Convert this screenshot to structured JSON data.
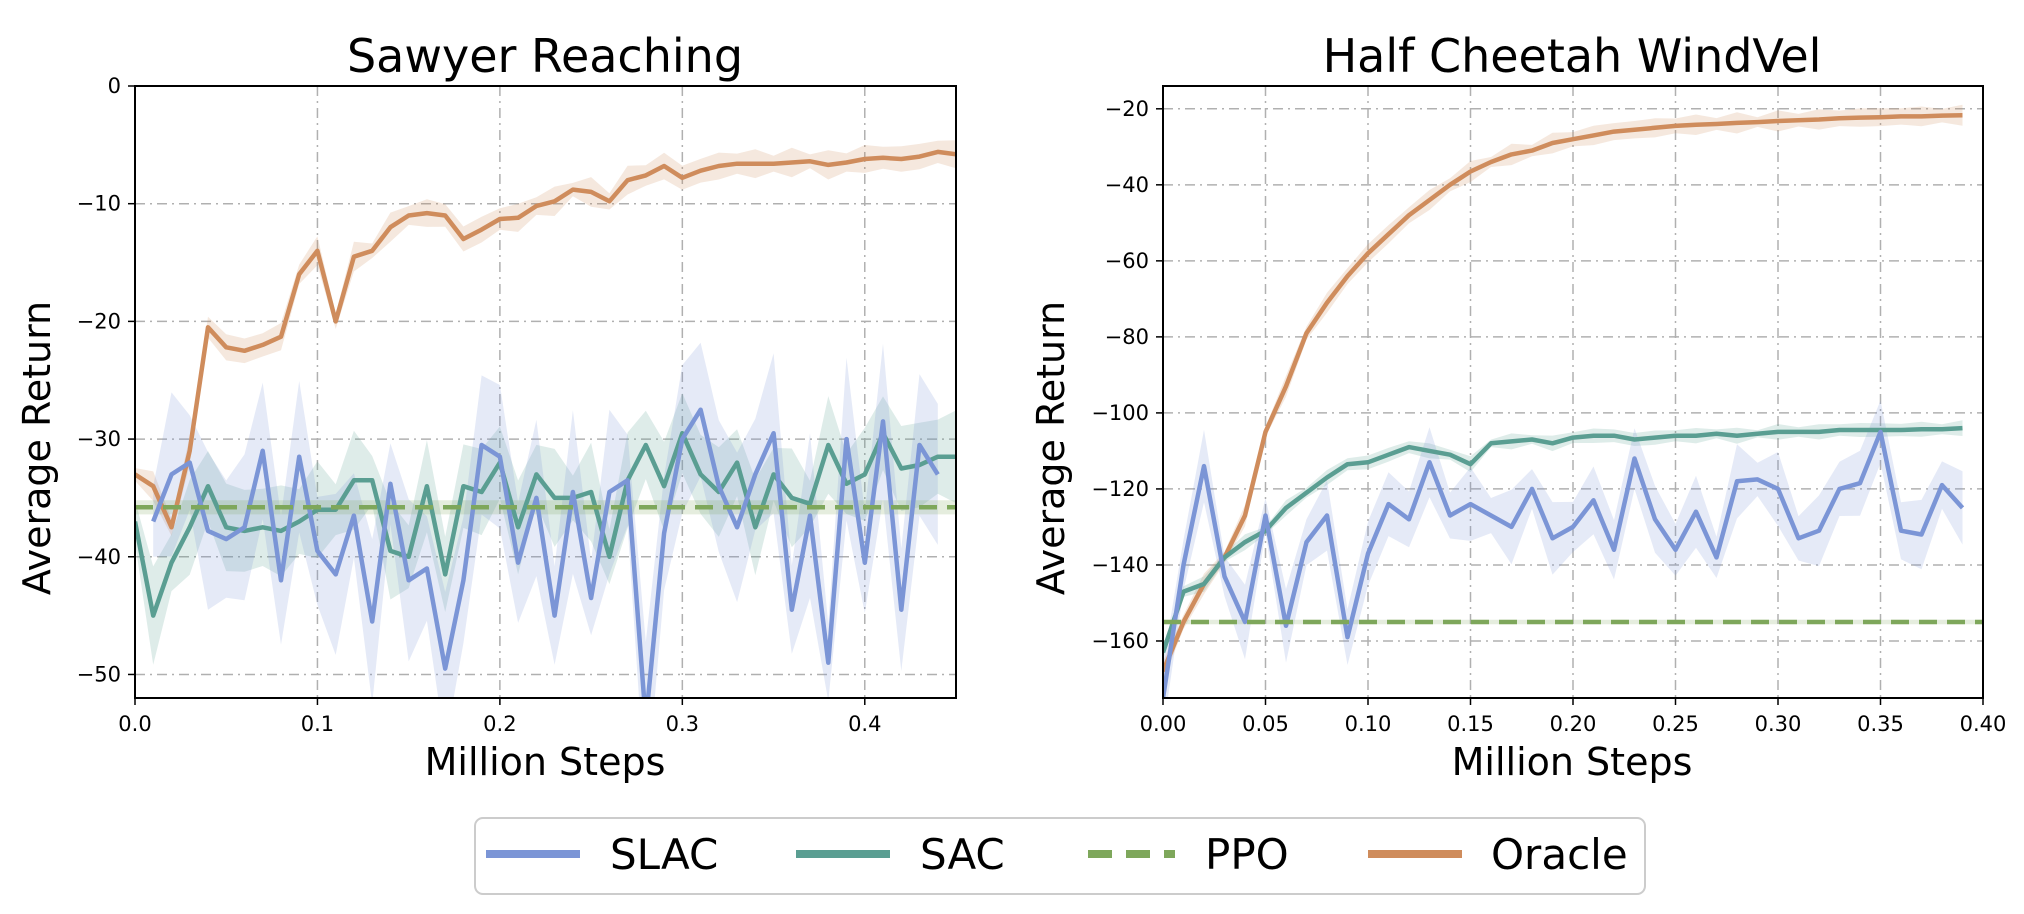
{
  "colors": {
    "SLAC": "#7b95d6",
    "SAC": "#5a9e92",
    "PPO": "#7ea75b",
    "Oracle": "#cf8c5c"
  },
  "legend": {
    "entries": [
      {
        "name": "SLAC",
        "style": "solid"
      },
      {
        "name": "SAC",
        "style": "solid"
      },
      {
        "name": "PPO",
        "style": "dashed"
      },
      {
        "name": "Oracle",
        "style": "solid"
      }
    ]
  },
  "chart_data": [
    {
      "type": "line",
      "title": "Sawyer Reaching",
      "xlabel": "Million Steps",
      "ylabel": "Average Return",
      "xlim": [
        0,
        0.45
      ],
      "ylim": [
        -52,
        0
      ],
      "xticks": [
        0.0,
        0.1,
        0.2,
        0.3,
        0.4
      ],
      "xtick_labels": [
        "0.0",
        "0.1",
        "0.2",
        "0.3",
        "0.4"
      ],
      "yticks": [
        0,
        -10,
        -20,
        -30,
        -40,
        -50
      ],
      "ytick_labels": [
        "0",
        "−10",
        "−20",
        "−30",
        "−40",
        "−50"
      ],
      "grid": true,
      "series": [
        {
          "name": "Oracle",
          "x": [
            0.0,
            0.01,
            0.02,
            0.03,
            0.04,
            0.05,
            0.06,
            0.07,
            0.08,
            0.09,
            0.1,
            0.11,
            0.12,
            0.13,
            0.14,
            0.15,
            0.16,
            0.17,
            0.18,
            0.19,
            0.2,
            0.21,
            0.22,
            0.23,
            0.24,
            0.25,
            0.26,
            0.27,
            0.28,
            0.29,
            0.3,
            0.31,
            0.32,
            0.33,
            0.34,
            0.35,
            0.36,
            0.37,
            0.38,
            0.39,
            0.4,
            0.41,
            0.42,
            0.43,
            0.44,
            0.45
          ],
          "y": [
            -33,
            -34,
            -37.5,
            -31,
            -20.5,
            -22.2,
            -22.5,
            -22,
            -21.3,
            -16,
            -14,
            -20,
            -14.5,
            -14,
            -12,
            -11,
            -10.8,
            -11,
            -13,
            -12.2,
            -11.3,
            -11.2,
            -10.2,
            -9.8,
            -8.8,
            -9,
            -9.8,
            -8,
            -7.6,
            -6.8,
            -7.8,
            -7.2,
            -6.8,
            -6.6,
            -6.6,
            -6.6,
            -6.5,
            -6.4,
            -6.7,
            -6.5,
            -6.2,
            -6.1,
            -6.2,
            -6.0,
            -5.6,
            -5.8
          ],
          "band": 0.9
        },
        {
          "name": "SAC",
          "x": [
            0.0,
            0.01,
            0.02,
            0.03,
            0.04,
            0.05,
            0.06,
            0.07,
            0.08,
            0.09,
            0.1,
            0.11,
            0.12,
            0.13,
            0.14,
            0.15,
            0.16,
            0.17,
            0.18,
            0.19,
            0.2,
            0.21,
            0.22,
            0.23,
            0.24,
            0.25,
            0.26,
            0.27,
            0.28,
            0.29,
            0.3,
            0.31,
            0.32,
            0.33,
            0.34,
            0.35,
            0.36,
            0.37,
            0.38,
            0.39,
            0.4,
            0.41,
            0.42,
            0.43,
            0.44,
            0.45
          ],
          "y": [
            -37,
            -45,
            -40.5,
            -37.5,
            -34,
            -37.5,
            -37.8,
            -37.5,
            -37.8,
            -37,
            -36,
            -36,
            -33.5,
            -33.5,
            -39.5,
            -40,
            -34,
            -41.5,
            -34,
            -34.5,
            -32,
            -37.5,
            -33,
            -35,
            -35,
            -34.5,
            -40,
            -33.5,
            -30.5,
            -34,
            -29.5,
            -33,
            -34.5,
            -32,
            -37.5,
            -33,
            -35,
            -35.5,
            -30.5,
            -33.8,
            -33,
            -29.5,
            -32.5,
            -32.2,
            -31.5,
            -31.5
          ],
          "band": 3.0
        },
        {
          "name": "SLAC",
          "x": [
            0.01,
            0.02,
            0.03,
            0.04,
            0.05,
            0.06,
            0.07,
            0.08,
            0.09,
            0.1,
            0.11,
            0.12,
            0.13,
            0.14,
            0.15,
            0.16,
            0.17,
            0.18,
            0.19,
            0.2,
            0.21,
            0.22,
            0.23,
            0.24,
            0.25,
            0.26,
            0.27,
            0.28,
            0.29,
            0.3,
            0.31,
            0.32,
            0.33,
            0.34,
            0.35,
            0.36,
            0.37,
            0.38,
            0.39,
            0.4,
            0.41,
            0.42,
            0.43,
            0.44
          ],
          "y": [
            -37,
            -33,
            -32,
            -37.8,
            -38.5,
            -37.5,
            -31,
            -42,
            -31.5,
            -39.5,
            -41.5,
            -36.5,
            -45.5,
            -33.8,
            -42,
            -41,
            -49.5,
            -42,
            -30.5,
            -31.5,
            -40.5,
            -35,
            -45,
            -34.5,
            -43.5,
            -34.5,
            -33.5,
            -54,
            -38,
            -30,
            -27.5,
            -34,
            -37.5,
            -33,
            -29.5,
            -44.5,
            -36.5,
            -49,
            -30,
            -40.5,
            -28.5,
            -44.5,
            -30.5,
            -33
          ],
          "band": 5.0
        },
        {
          "name": "PPO",
          "x": [
            0.0,
            0.45
          ],
          "y": [
            -35.8,
            -35.8
          ],
          "band": 0.6,
          "dashed": true
        }
      ]
    },
    {
      "type": "line",
      "title": "Half Cheetah WindVel",
      "xlabel": "Million Steps",
      "ylabel": "Average Return",
      "xlim": [
        0,
        0.4
      ],
      "ylim": [
        -175,
        -14
      ],
      "xticks": [
        0.0,
        0.05,
        0.1,
        0.15,
        0.2,
        0.25,
        0.3,
        0.35,
        0.4
      ],
      "xtick_labels": [
        "0.00",
        "0.05",
        "0.10",
        "0.15",
        "0.20",
        "0.25",
        "0.30",
        "0.35",
        "0.40"
      ],
      "yticks": [
        -20,
        -40,
        -60,
        -80,
        -100,
        -120,
        -140,
        -160
      ],
      "ytick_labels": [
        "−20",
        "−40",
        "−60",
        "−80",
        "−100",
        "−120",
        "−140",
        "−160"
      ],
      "grid": true,
      "series": [
        {
          "name": "Oracle",
          "x": [
            0.0,
            0.01,
            0.02,
            0.03,
            0.04,
            0.05,
            0.06,
            0.07,
            0.08,
            0.09,
            0.1,
            0.11,
            0.12,
            0.13,
            0.14,
            0.15,
            0.16,
            0.17,
            0.18,
            0.19,
            0.2,
            0.21,
            0.22,
            0.23,
            0.24,
            0.25,
            0.26,
            0.27,
            0.28,
            0.29,
            0.3,
            0.31,
            0.32,
            0.33,
            0.34,
            0.35,
            0.36,
            0.37,
            0.38,
            0.39
          ],
          "y": [
            -168,
            -155,
            -145,
            -138,
            -127,
            -105,
            -93,
            -79,
            -71,
            -64,
            -58,
            -53,
            -48,
            -44,
            -40,
            -36.5,
            -34,
            -32,
            -31,
            -29,
            -28,
            -27,
            -26,
            -25.5,
            -25,
            -24.5,
            -24.2,
            -24,
            -23.7,
            -23.5,
            -23.2,
            -23,
            -22.8,
            -22.5,
            -22.3,
            -22.2,
            -22.0,
            -22.0,
            -21.8,
            -21.7
          ],
          "band": 2.0
        },
        {
          "name": "SAC",
          "x": [
            0.0,
            0.01,
            0.02,
            0.03,
            0.04,
            0.05,
            0.06,
            0.07,
            0.08,
            0.09,
            0.1,
            0.11,
            0.12,
            0.13,
            0.14,
            0.15,
            0.16,
            0.17,
            0.18,
            0.19,
            0.2,
            0.21,
            0.22,
            0.23,
            0.24,
            0.25,
            0.26,
            0.27,
            0.28,
            0.29,
            0.3,
            0.31,
            0.32,
            0.33,
            0.34,
            0.35,
            0.36,
            0.37,
            0.38,
            0.39
          ],
          "y": [
            -163,
            -147,
            -145,
            -138,
            -134,
            -131,
            -125,
            -121,
            -117,
            -113.5,
            -113,
            -111,
            -109,
            -110,
            -111,
            -113.5,
            -108,
            -107.5,
            -107,
            -108,
            -106.5,
            -106,
            -106,
            -107,
            -106.5,
            -106,
            -106,
            -105.5,
            -106,
            -105.5,
            -105,
            -105,
            -105,
            -104.5,
            -104.5,
            -104.5,
            -104.5,
            -104.3,
            -104.3,
            -104
          ],
          "band": 1.5
        },
        {
          "name": "SLAC",
          "x": [
            0.0,
            0.01,
            0.02,
            0.03,
            0.04,
            0.05,
            0.06,
            0.07,
            0.08,
            0.09,
            0.1,
            0.11,
            0.12,
            0.13,
            0.14,
            0.15,
            0.16,
            0.17,
            0.18,
            0.19,
            0.2,
            0.21,
            0.22,
            0.23,
            0.24,
            0.25,
            0.26,
            0.27,
            0.28,
            0.29,
            0.3,
            0.31,
            0.32,
            0.33,
            0.34,
            0.35,
            0.36,
            0.37,
            0.38,
            0.39
          ],
          "y": [
            -175,
            -140,
            -114,
            -143,
            -155,
            -127,
            -156,
            -134,
            -127,
            -159,
            -137,
            -124,
            -128,
            -113,
            -127,
            -124,
            -127,
            -130,
            -120,
            -133,
            -130,
            -123,
            -136,
            -112,
            -128,
            -136,
            -126,
            -138,
            -118,
            -117.5,
            -120,
            -133,
            -131,
            -120,
            -118.5,
            -105,
            -131,
            -132,
            -119,
            -125
          ],
          "band": 7.0
        },
        {
          "name": "PPO",
          "x": [
            0.0,
            0.4
          ],
          "y": [
            -155,
            -155
          ],
          "band": 0.6,
          "dashed": true
        }
      ]
    }
  ]
}
